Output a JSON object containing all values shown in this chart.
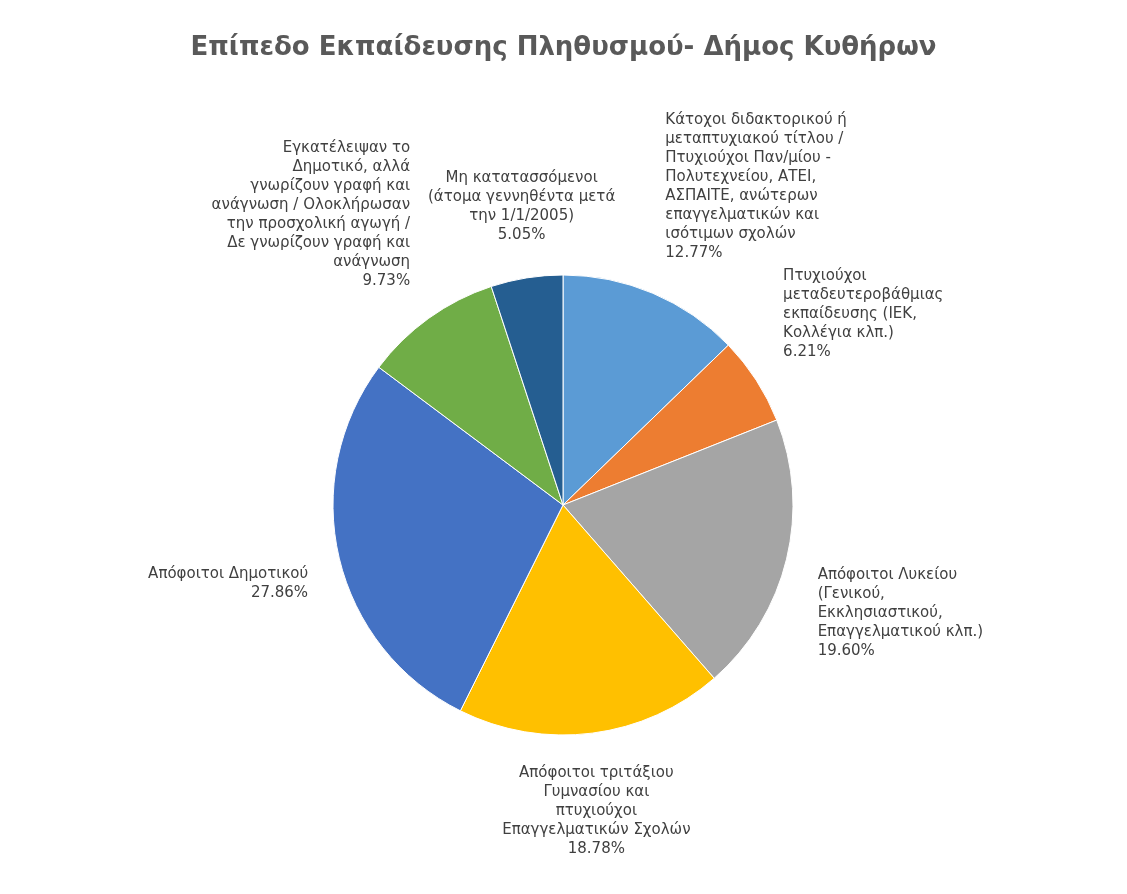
{
  "chart_data": {
    "type": "pie",
    "title": "Επίπεδο Εκπαίδευσης Πληθυσμού- Δήμος Κυθήρων",
    "categories": [
      "Κάτοχοι διδακτορικού ή μεταπτυχιακού τίτλου / Πτυχιούχοι Παν/μίου - Πολυτεχνείου, ΑΤΕΙ, ΑΣΠΑΙΤΕ, ανώτερων επαγγελματικών και ισότιμων σχολών",
      "Πτυχιούχοι μεταδευτεροβάθμιας εκπαίδευσης (ΙΕΚ, Κολλέγια κλπ.)",
      "Απόφοιτοι Λυκείου (Γενικού, Εκκλησιαστικού, Επαγγελματικού κλπ.)",
      "Απόφοιτοι τριτάξιου Γυμνασίου και πτυχιούχοι Επαγγελματικών Σχολών",
      "Απόφοιτοι Δημοτικού",
      "Εγκατέλειψαν το Δημοτικό, αλλά γνωρίζουν γραφή και ανάγνωση / Ολοκλήρωσαν την προσχολική αγωγή / Δε γνωρίζουν γραφή και ανάγνωση",
      "Μη κατατασσόμενοι (άτομα γεννηθέντα μετά την 1/1/2005)"
    ],
    "values": [
      12.77,
      6.21,
      19.6,
      18.78,
      27.86,
      9.73,
      5.05
    ],
    "value_labels": [
      "12.77%",
      "6.21%",
      "19.60%",
      "18.78%",
      "27.86%",
      "9.73%",
      "5.05%"
    ],
    "colors": [
      "#5b9bd5",
      "#ed7d31",
      "#a5a5a5",
      "#ffc000",
      "#4472c4",
      "#70ad47",
      "#255e91"
    ]
  }
}
